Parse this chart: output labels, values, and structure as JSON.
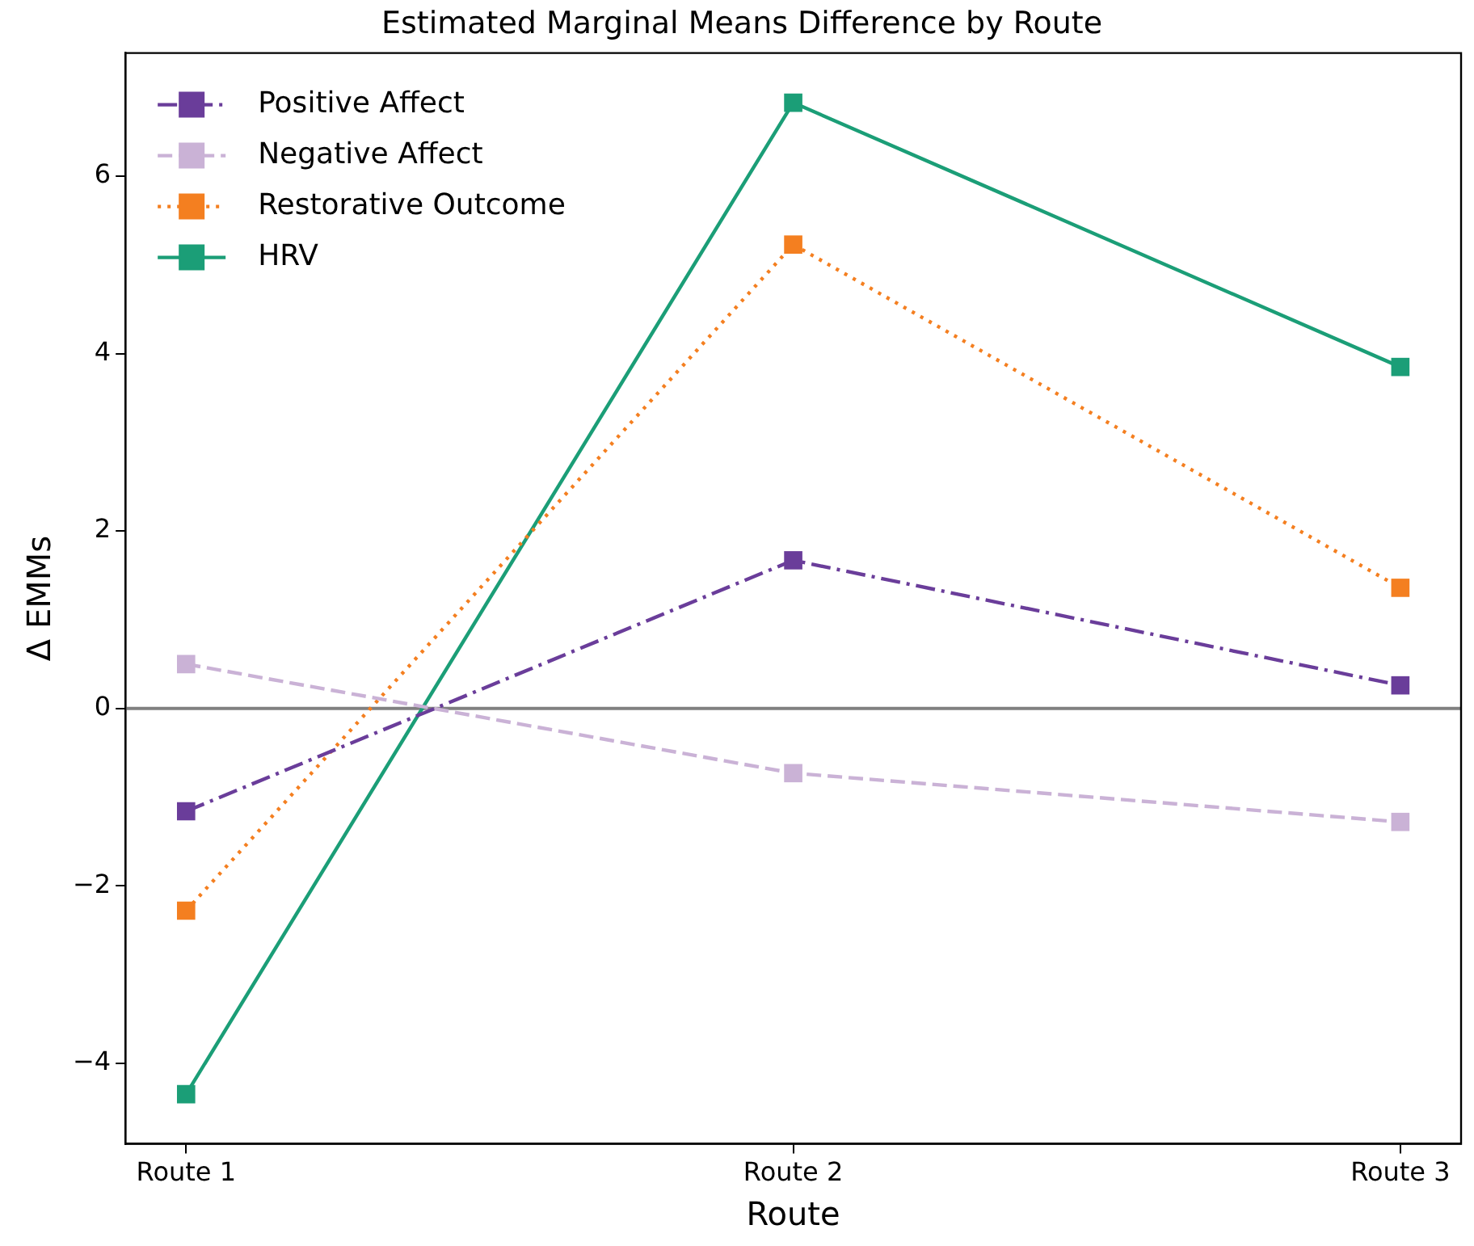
{
  "chart_data": {
    "type": "line",
    "title": "Estimated Marginal Means Difference by Route",
    "xlabel": "Route",
    "ylabel": "Δ EMMs",
    "categories": [
      "Route 1",
      "Route 2",
      "Route 3"
    ],
    "series": [
      {
        "name": "Positive Affect",
        "color": "#6a3d9a",
        "values": [
          -1.16,
          1.67,
          0.26
        ],
        "line_style": "dashdot"
      },
      {
        "name": "Negative Affect",
        "color": "#cab2d6",
        "values": [
          0.5,
          -0.73,
          -1.28
        ],
        "line_style": "dashed"
      },
      {
        "name": "Restorative Outcome",
        "color": "#f47f20",
        "values": [
          -2.28,
          5.23,
          1.36
        ],
        "line_style": "dotted"
      },
      {
        "name": "HRV",
        "color": "#1b9e77",
        "values": [
          -4.35,
          6.83,
          3.85
        ],
        "line_style": "solid"
      }
    ],
    "ylim": [
      -4.91,
      7.39
    ],
    "yticks": [
      -4,
      -2,
      0,
      2,
      4,
      6
    ],
    "ref_lines": [
      {
        "axis": "y",
        "value": 0,
        "color": "#808080",
        "line_style": "solid"
      }
    ],
    "marker": "square",
    "grid": false,
    "legend": "top left"
  }
}
